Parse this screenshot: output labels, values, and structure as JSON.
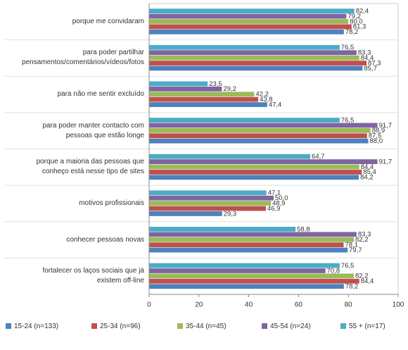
{
  "chart_data": {
    "type": "hbar",
    "categories": [
      "porque me convidaram",
      "para poder partilhar\npensamentos/comentários/vídeos/fotos",
      "para não me sentir excluído",
      "para poder manter contacto com\npessoas que estão longe",
      "porque a maioria das pessoas que\nconheço está nesse tipo de sites",
      "motivos profissionais",
      "conhecer pessoas novas",
      "fortalecer os laços sociais que já\nexistem off-line"
    ],
    "series": [
      {
        "name": "15-24 (n=133)",
        "color": "#4f81bd",
        "values": [
          78.2,
          85.7,
          47.4,
          88.0,
          84.2,
          29.3,
          79.7,
          78.2
        ],
        "value_labels": [
          "78,2",
          "85,7",
          "47,4",
          "88,0",
          "84,2",
          "29,3",
          "79,7",
          "78,2"
        ]
      },
      {
        "name": "25-34 (n=96)",
        "color": "#c0504d",
        "values": [
          81.3,
          87.3,
          43.8,
          87.5,
          85.4,
          46.9,
          78.1,
          84.4
        ],
        "value_labels": [
          "81,3",
          "87,3",
          "43,8",
          "87,5",
          "85,4",
          "46,9",
          "78,1",
          "84,4"
        ]
      },
      {
        "name": "35-44 (n=45)",
        "color": "#9bbb59",
        "values": [
          80.0,
          84.4,
          42.2,
          88.9,
          84.4,
          48.9,
          82.2,
          82.2
        ],
        "value_labels": [
          "80,0",
          "84,4",
          "42,2",
          "88,9",
          "84,4",
          "48,9",
          "82,2",
          "82,2"
        ]
      },
      {
        "name": "45-54 (n=24)",
        "color": "#8064a2",
        "values": [
          79.2,
          83.3,
          29.2,
          91.7,
          91.7,
          50.0,
          83.3,
          70.8
        ],
        "value_labels": [
          "79,2",
          "83,3",
          "29,2",
          "91,7",
          "91,7",
          "50,0",
          "83,3",
          "70,8"
        ]
      },
      {
        "name": "55 + (n=17)",
        "color": "#4bacc6",
        "values": [
          82.4,
          76.5,
          23.5,
          76.5,
          64.7,
          47.1,
          58.8,
          76.5
        ],
        "value_labels": [
          "82,4",
          "76,5",
          "23,5",
          "76,5",
          "64,7",
          "47,1",
          "58,8",
          "76,5"
        ]
      }
    ],
    "xlim": [
      0,
      100
    ],
    "xticks": [
      0,
      20,
      40,
      60,
      80,
      100
    ]
  }
}
